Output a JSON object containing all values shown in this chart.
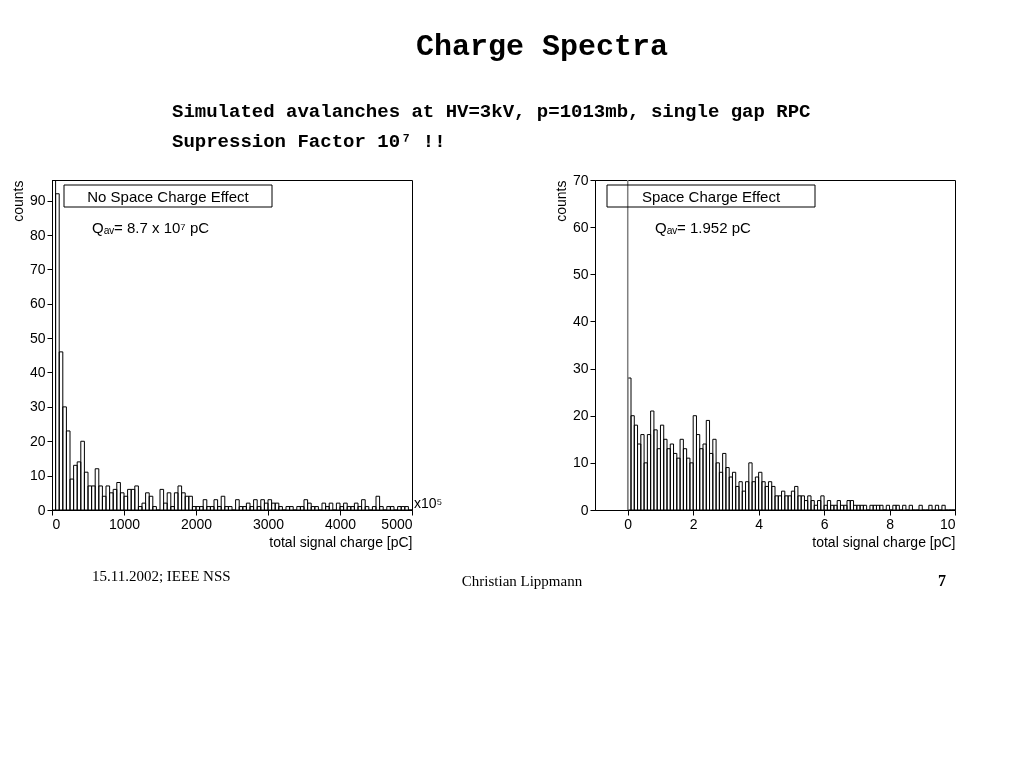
{
  "chart_data": [
    {
      "type": "histogram",
      "title": "No Space Charge Effect",
      "xlabel": "total signal charge [pC]",
      "ylabel": "counts",
      "color": "#000000",
      "bins": [
        0,
        50,
        100,
        150,
        200,
        250,
        300,
        350,
        400,
        450,
        500,
        550,
        600,
        650,
        700,
        750,
        800,
        850,
        900,
        950,
        1000,
        1050,
        1100,
        1150,
        1200,
        1250,
        1300,
        1350,
        1400,
        1450,
        1500,
        1550,
        1600,
        1650,
        1700,
        1750,
        1800,
        1850,
        1900,
        1950,
        2000,
        2050,
        2100,
        2150,
        2200,
        2250,
        2300,
        2350,
        2400,
        2450,
        2500,
        2550,
        2600,
        2650,
        2700,
        2750,
        2800,
        2850,
        2900,
        2950,
        3000,
        3050,
        3100,
        3150,
        3200,
        3250,
        3300,
        3350,
        3400,
        3450,
        3500,
        3550,
        3600,
        3650,
        3700,
        3750,
        3800,
        3850,
        3900,
        3950,
        4000,
        4050,
        4100,
        4150,
        4200,
        4250,
        4300,
        4350,
        4400,
        4450,
        4500,
        4550,
        4600,
        4650,
        4700,
        4750,
        4800,
        4850,
        4900,
        4950,
        5000
      ],
      "values": [
        96,
        92,
        46,
        30,
        23,
        9,
        13,
        14,
        20,
        11,
        7,
        7,
        12,
        7,
        4,
        7,
        5,
        6,
        8,
        5,
        4,
        6,
        6,
        7,
        1,
        2,
        5,
        4,
        1,
        0,
        6,
        2,
        5,
        1,
        5,
        7,
        5,
        4,
        4,
        1,
        1,
        1,
        3,
        1,
        1,
        3,
        1,
        4,
        1,
        1,
        0,
        3,
        1,
        1,
        2,
        1,
        3,
        1,
        3,
        2,
        3,
        2,
        2,
        1,
        0,
        1,
        1,
        0,
        1,
        1,
        3,
        2,
        1,
        1,
        0,
        2,
        1,
        2,
        0,
        2,
        1,
        2,
        1,
        1,
        2,
        1,
        3,
        1,
        0,
        1,
        4,
        1,
        0,
        1,
        1,
        0,
        1,
        1,
        1,
        0
      ],
      "xlim": [
        0,
        5000
      ],
      "xticks": [
        0,
        1000,
        2000,
        3000,
        4000,
        5000
      ],
      "ylim": [
        0,
        96
      ],
      "yticks": [
        0,
        10,
        20,
        30,
        40,
        50,
        60,
        70,
        80,
        90
      ],
      "grid": false,
      "annotations": [
        "Qₐᵥ= 8.7 x 10⁷ pC",
        "x10⁵",
        "Charge Spectra",
        "Simulated avalanches at HV=3kV, p=1013mb, single gap RPC",
        "Supression Factor 10⁷ !!",
        "15.11.2002; IEEE NSS"
      ]
    },
    {
      "type": "histogram",
      "title": "Space Charge Effect",
      "xlabel": "total signal charge [pC]",
      "ylabel": "counts",
      "color": "#000000",
      "bins": [
        0,
        0.1,
        0.2,
        0.3,
        0.4,
        0.5,
        0.6,
        0.7,
        0.8,
        0.9,
        1,
        1.1,
        1.2,
        1.3,
        1.4,
        1.5,
        1.6,
        1.7,
        1.8,
        1.9,
        2,
        2.1,
        2.2,
        2.3,
        2.4,
        2.5,
        2.6,
        2.7,
        2.8,
        2.9,
        3,
        3.1,
        3.2,
        3.3,
        3.4,
        3.5,
        3.6,
        3.7,
        3.8,
        3.9,
        4,
        4.1,
        4.2,
        4.3,
        4.4,
        4.5,
        4.6,
        4.7,
        4.8,
        4.9,
        5,
        5.1,
        5.2,
        5.3,
        5.4,
        5.5,
        5.6,
        5.7,
        5.8,
        5.9,
        6,
        6.1,
        6.2,
        6.3,
        6.4,
        6.5,
        6.6,
        6.7,
        6.8,
        6.9,
        7,
        7.1,
        7.2,
        7.3,
        7.4,
        7.5,
        7.6,
        7.7,
        7.8,
        7.9,
        8,
        8.1,
        8.2,
        8.3,
        8.4,
        8.5,
        8.6,
        8.7,
        8.8,
        8.9,
        9,
        9.1,
        9.2,
        9.3,
        9.4,
        9.5,
        9.6,
        9.7,
        9.8,
        9.9,
        10
      ],
      "values": [
        28,
        20,
        18,
        14,
        16,
        10,
        16,
        21,
        17,
        13,
        18,
        15,
        13,
        14,
        12,
        11,
        15,
        13,
        11,
        10,
        20,
        16,
        13,
        14,
        19,
        12,
        15,
        10,
        8,
        12,
        9,
        7,
        8,
        5,
        6,
        4,
        6,
        10,
        6,
        7,
        8,
        6,
        5,
        6,
        5,
        3,
        3,
        4,
        3,
        3,
        4,
        5,
        3,
        3,
        2,
        3,
        2,
        1,
        2,
        3,
        1,
        2,
        1,
        1,
        2,
        1,
        1,
        2,
        2,
        1,
        1,
        1,
        1,
        0,
        1,
        1,
        1,
        1,
        0,
        1,
        0,
        1,
        1,
        0,
        1,
        0,
        1,
        0,
        0,
        1,
        0,
        0,
        1,
        0,
        1,
        0,
        1,
        0,
        0,
        0
      ],
      "xlim": [
        -1,
        10
      ],
      "xticks": [
        0,
        2,
        4,
        6,
        8,
        10
      ],
      "ylim": [
        0,
        70
      ],
      "yticks": [
        0,
        10,
        20,
        30,
        40,
        50,
        60,
        70
      ],
      "grid": false,
      "ref_lines": [
        {
          "axis": "x",
          "value": 0,
          "color": "#808080"
        }
      ],
      "annotations": [
        "Qₐᵥ= 1.952 pC",
        "Christian Lippmann",
        "7"
      ]
    }
  ]
}
